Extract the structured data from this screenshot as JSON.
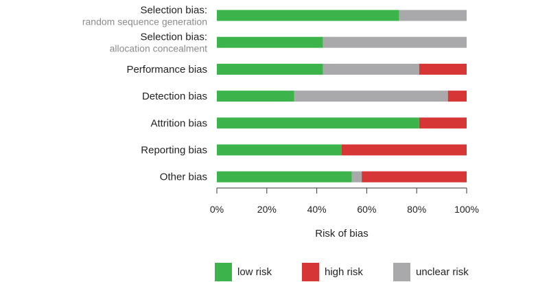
{
  "chart_data": {
    "type": "bar",
    "stacked": true,
    "orientation": "horizontal",
    "categories": [
      {
        "label": "Selection bias:",
        "sublabel": "random sequence generation"
      },
      {
        "label": "Selection bias:",
        "sublabel": "allocation concealment"
      },
      {
        "label": "Performance bias",
        "sublabel": ""
      },
      {
        "label": "Detection bias",
        "sublabel": ""
      },
      {
        "label": "Attrition bias",
        "sublabel": ""
      },
      {
        "label": "Reporting bias",
        "sublabel": ""
      },
      {
        "label": "Other bias",
        "sublabel": ""
      }
    ],
    "series": [
      {
        "name": "low risk",
        "color": "#3cb44b",
        "values": [
          73,
          42.5,
          42.5,
          31,
          81,
          50,
          54
        ]
      },
      {
        "name": "unclear risk",
        "color": "#a9a9ab",
        "values": [
          27,
          57.5,
          38.5,
          61.5,
          0,
          0,
          4
        ]
      },
      {
        "name": "high risk",
        "color": "#d63636",
        "values": [
          0,
          0,
          19,
          7.5,
          19,
          50,
          42
        ]
      }
    ],
    "legend_order": [
      "low risk",
      "high risk",
      "unclear risk"
    ],
    "xlabel": "Risk of bias",
    "xlim": [
      0,
      100
    ],
    "xticks": [
      0,
      20,
      40,
      60,
      80,
      100
    ],
    "xtick_labels": [
      "0%",
      "20%",
      "40%",
      "60%",
      "80%",
      "100%"
    ],
    "legend_position": "bottom",
    "grid": false
  }
}
